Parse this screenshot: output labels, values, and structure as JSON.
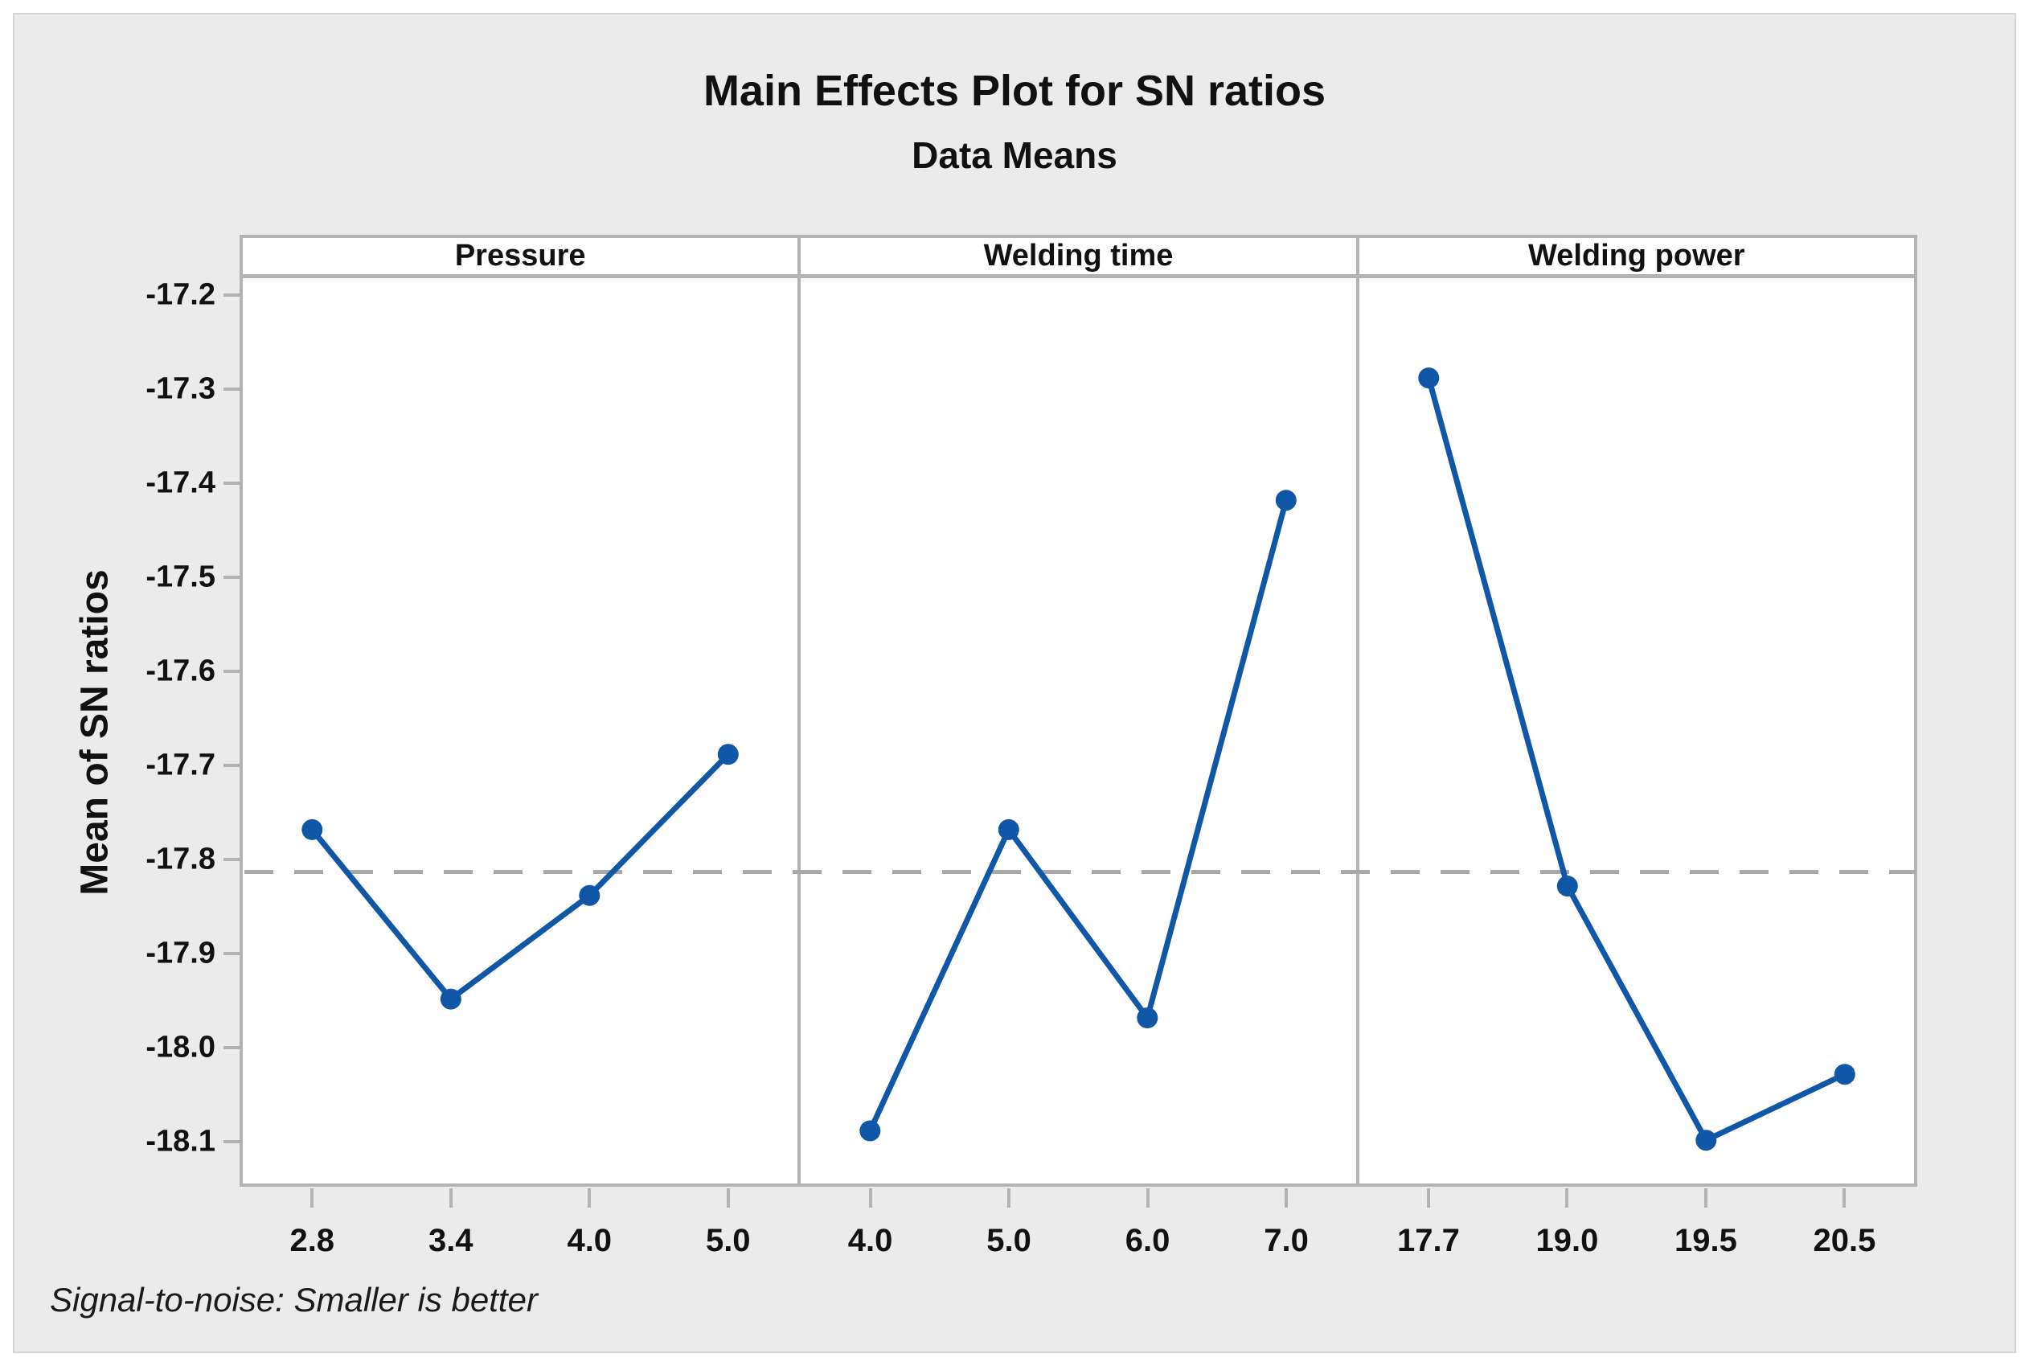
{
  "chart_data": {
    "type": "line",
    "title": "Main Effects Plot for SN ratios",
    "subtitle": "Data Means",
    "ylabel": "Mean of SN ratios",
    "footnote": "Signal-to-noise: Smaller is better",
    "ylim": [
      -18.146,
      -17.184
    ],
    "yticks": [
      "-17.2",
      "-17.3",
      "-17.4",
      "-17.5",
      "-17.6",
      "-17.7",
      "-17.8",
      "-17.9",
      "-18.0",
      "-18.1"
    ],
    "mean_line": -17.8125,
    "grid": "off",
    "legend": "none",
    "panels": [
      {
        "label": "Pressure",
        "x_labels": [
          "2.8",
          "3.4",
          "4.0",
          "5.0"
        ],
        "values": [
          -17.77,
          -17.95,
          -17.84,
          -17.69
        ]
      },
      {
        "label": "Welding time",
        "x_labels": [
          "4.0",
          "5.0",
          "6.0",
          "7.0"
        ],
        "values": [
          -18.09,
          -17.77,
          -17.97,
          -17.42
        ]
      },
      {
        "label": "Welding power",
        "x_labels": [
          "17.7",
          "19.0",
          "19.5",
          "20.5"
        ],
        "values": [
          -17.29,
          -17.83,
          -18.1,
          -18.03
        ]
      }
    ],
    "colors": {
      "line": "#1057a7",
      "marker": "#1057a7",
      "mean_line": "#a8a8a8",
      "panel_border": "#b3b3b3",
      "figure_background": "#ebebeb",
      "plot_background": "#ffffff",
      "text": "#111111"
    }
  }
}
